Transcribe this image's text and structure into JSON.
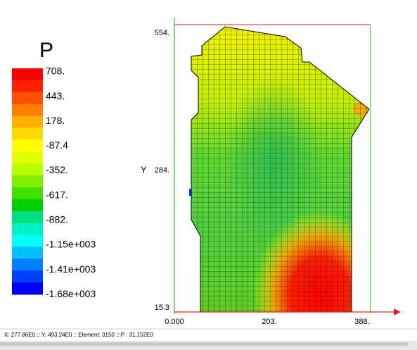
{
  "legend": {
    "title": "P",
    "labels": [
      "708.",
      "443.",
      "178.",
      "-87.4",
      "-352.",
      "-617.",
      "-882.",
      "-1.15e+003",
      "-1.41e+003",
      "-1.68e+003"
    ],
    "colors": [
      "#ff0000",
      "#ff2000",
      "#ff5000",
      "#ff8000",
      "#ffb000",
      "#ffd800",
      "#ffff00",
      "#e0ff00",
      "#b8ff00",
      "#80f000",
      "#40e000",
      "#00d000",
      "#00e080",
      "#00f0c0",
      "#00ffff",
      "#00c0ff",
      "#0080ff",
      "#0040ff",
      "#0000ff"
    ]
  },
  "plot": {
    "y_axis_label": "Y",
    "y_labels": [
      "554.",
      "284.",
      "15.3"
    ],
    "x_labels": [
      "0.000",
      "203.",
      "388."
    ]
  },
  "status_bar": "X: 277.86E0 :: Y: 493.24E0 :: Element: 3150 :: P   : 31.152E0"
}
